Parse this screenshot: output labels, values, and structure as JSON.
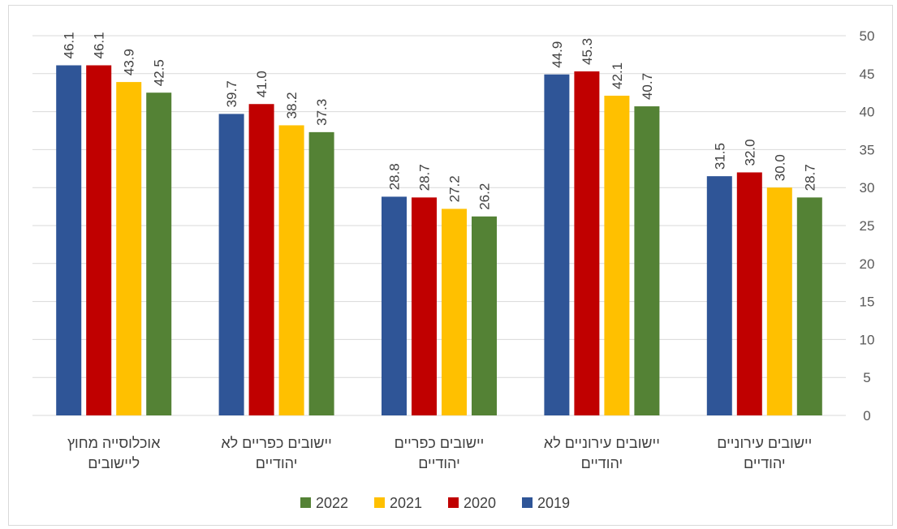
{
  "chart_data": {
    "type": "bar",
    "categories": [
      [
        "אוכלוסייה מחוץ",
        "ליישובים"
      ],
      [
        "יישובים כפריים לא",
        "יהודיים"
      ],
      [
        "יישובים כפריים",
        "יהודיים"
      ],
      [
        "יישובים עירוניים לא",
        "יהודיים"
      ],
      [
        "יישובים עירוניים",
        "יהודיים"
      ]
    ],
    "series": [
      {
        "name": "2019",
        "color": "#2F5597",
        "values": [
          46.1,
          39.7,
          28.8,
          44.9,
          31.5
        ],
        "labels": [
          "46.1",
          "39.7",
          "28.8",
          "44.9",
          "31.5"
        ]
      },
      {
        "name": "2020",
        "color": "#C00000",
        "values": [
          46.1,
          41.0,
          28.7,
          45.3,
          32.0
        ],
        "labels": [
          "46.1",
          "41.0",
          "28.7",
          "45.3",
          "32.0"
        ]
      },
      {
        "name": "2021",
        "color": "#FFC000",
        "values": [
          43.9,
          38.2,
          27.2,
          42.1,
          30.0
        ],
        "labels": [
          "43.9",
          "38.2",
          "27.2",
          "42.1",
          "30.0"
        ]
      },
      {
        "name": "2022",
        "color": "#548235",
        "values": [
          42.5,
          37.3,
          26.2,
          40.7,
          28.7
        ],
        "labels": [
          "42.5",
          "37.3",
          "26.2",
          "40.7",
          "28.7"
        ]
      }
    ],
    "yticks": [
      "0",
      "5",
      "10",
      "15",
      "20",
      "25",
      "30",
      "35",
      "40",
      "45",
      "50"
    ],
    "ylim": [
      0,
      50
    ],
    "y_axis_side": "right",
    "grid": true,
    "legend_position": "bottom",
    "legend_order": [
      "2022",
      "2021",
      "2020",
      "2019"
    ]
  }
}
